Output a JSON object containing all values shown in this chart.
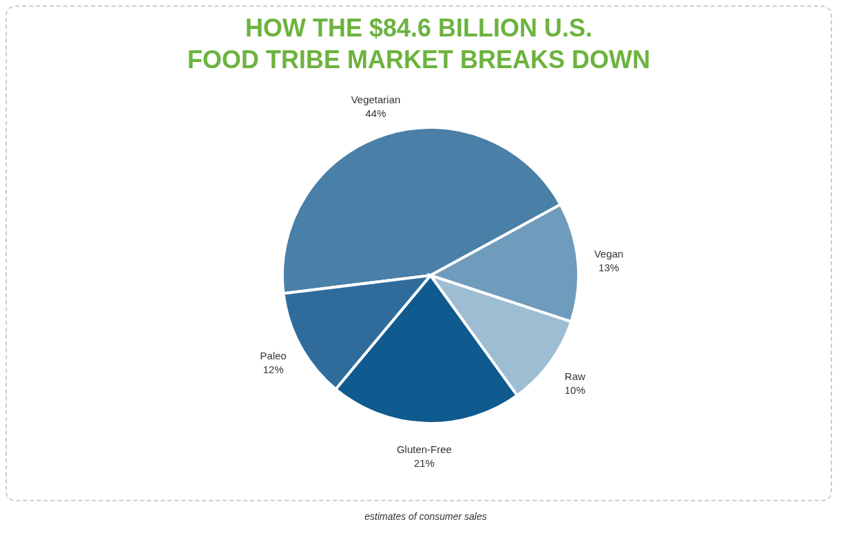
{
  "chart_data": {
    "type": "pie",
    "title": "HOW THE $84.6 BILLION U.S.\nFOOD TRIBE MARKET BREAKS DOWN",
    "categories": [
      "Vegetarian",
      "Vegan",
      "Raw",
      "Gluten-Free",
      "Paleo"
    ],
    "values": [
      44,
      13,
      10,
      21,
      12
    ],
    "value_labels": [
      "44%",
      "13%",
      "10%",
      "21%",
      "12%"
    ],
    "colors": [
      "#4a7fa7",
      "#6f9bbd",
      "#9dbdd3",
      "#0f5a8f",
      "#2f6c9c"
    ],
    "annotations": [
      "estimates of consumer sales"
    ]
  }
}
